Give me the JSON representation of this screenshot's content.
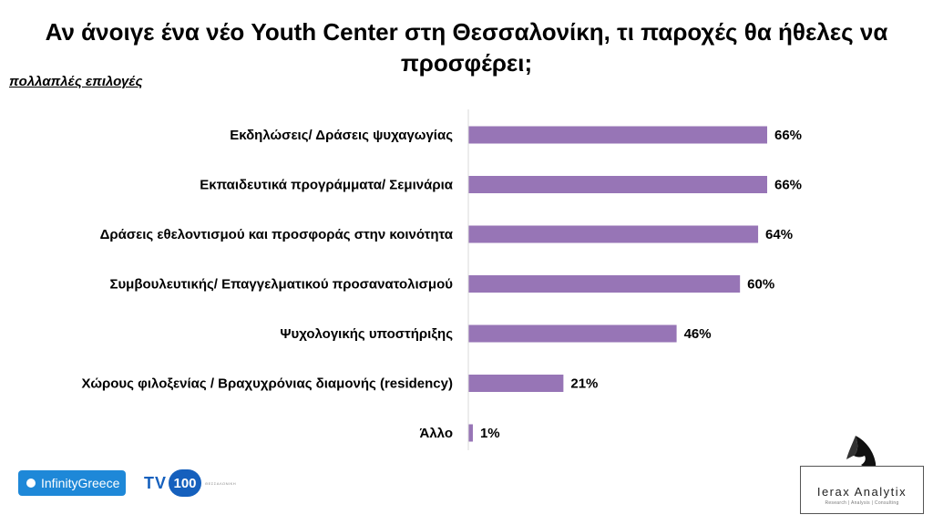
{
  "colors": {
    "bar": "#9775b6",
    "axis": "#d9d9d9",
    "infinity_brand": "#1e88d8",
    "tv_brand": "#1560bd"
  },
  "chart_data": {
    "type": "bar",
    "orientation": "horizontal",
    "title": "Αν άνοιγε ένα νέο Youth Center στη Θεσσαλονίκη, τι παροχές θα ήθελες να προσφέρει;",
    "subtitle": "πολλαπλές επιλογές",
    "categories": [
      "Εκδηλώσεις/ Δράσεις ψυχαγωγίας",
      "Εκπαιδευτικά προγράμματα/ Σεμινάρια",
      "Δράσεις εθελοντισμού και προσφοράς στην κοινότητα",
      "Συμβουλευτικής/ Επαγγελματικού προσανατολισμού",
      "Ψυχολογικής υποστήριξης",
      "Χώρους φιλοξενίας / Βραχυχρόνιας διαμονής (residency)",
      "Άλλο"
    ],
    "values": [
      66,
      66,
      64,
      60,
      46,
      21,
      1
    ],
    "value_labels": [
      "66%",
      "66%",
      "64%",
      "60%",
      "46%",
      "21%",
      "1%"
    ],
    "unit": "%",
    "xlim": [
      0,
      100
    ],
    "grid": false,
    "legend": "none"
  },
  "logos": {
    "infinity": "InfinityGreece",
    "tv_prefix": "TV",
    "tv_number": "100",
    "tv_tag": "ΘΕΣΣΑΛΟΝΙΚΗ",
    "ierax_name": "Ierax Analytix",
    "ierax_tagline": "Research | Analysis | Consulting"
  }
}
